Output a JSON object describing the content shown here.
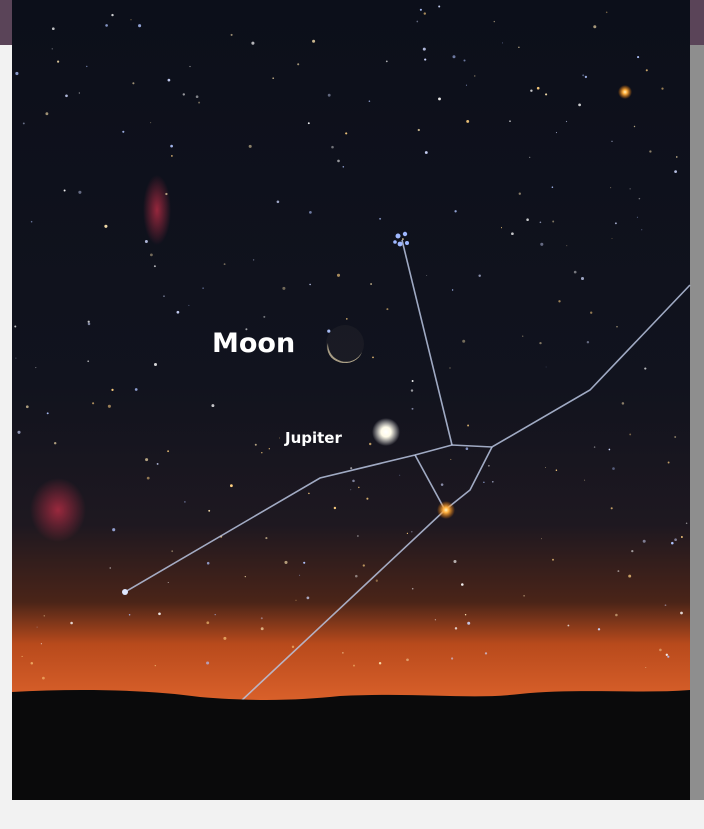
{
  "labels": {
    "moon": "Moon",
    "jupiter": "Jupiter"
  }
}
